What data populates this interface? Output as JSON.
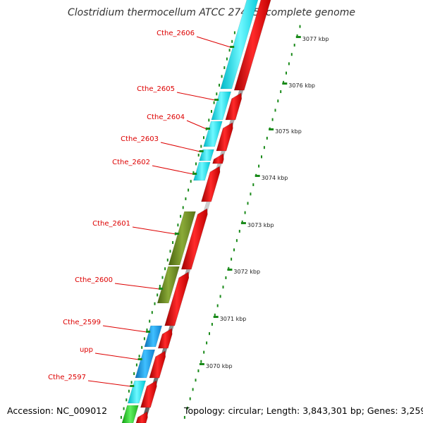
{
  "title": "Clostridium thermocellum ATCC 27405, complete genome",
  "footer": {
    "accession": "Accession: NC_009012",
    "topology": "Topology: circular; Length: 3,843,301 bp; Genes: 3,259"
  },
  "colors": {
    "label": "#dd0000",
    "tick": "#1a8a1a",
    "forward_gene": "#e51f1f",
    "cyan_gene": "#1ce6f0",
    "blue_gene": "#1aa0e6",
    "olive_gene": "#6a8a1e",
    "green_gene": "#2ad02a",
    "backbone": "#888888"
  },
  "genes": [
    {
      "name": "Cthe_2606",
      "color": "cyan_gene"
    },
    {
      "name": "Cthe_2605",
      "color": "cyan_gene"
    },
    {
      "name": "Cthe_2604",
      "color": "cyan_gene"
    },
    {
      "name": "Cthe_2603",
      "color": "cyan_gene"
    },
    {
      "name": "Cthe_2602",
      "color": "cyan_gene"
    },
    {
      "name": "Cthe_2601",
      "color": "olive_gene"
    },
    {
      "name": "Cthe_2600",
      "color": "olive_gene"
    },
    {
      "name": "Cthe_2599",
      "color": "blue_gene"
    },
    {
      "name": "upp",
      "color": "blue_gene"
    },
    {
      "name": "Cthe_2597",
      "color": "cyan_gene"
    }
  ],
  "scale_labels": [
    "3077 kbp",
    "3076 kbp",
    "3075 kbp",
    "3074 kbp",
    "3073 kbp",
    "3072 kbp",
    "3071 kbp",
    "3070 kbp"
  ]
}
